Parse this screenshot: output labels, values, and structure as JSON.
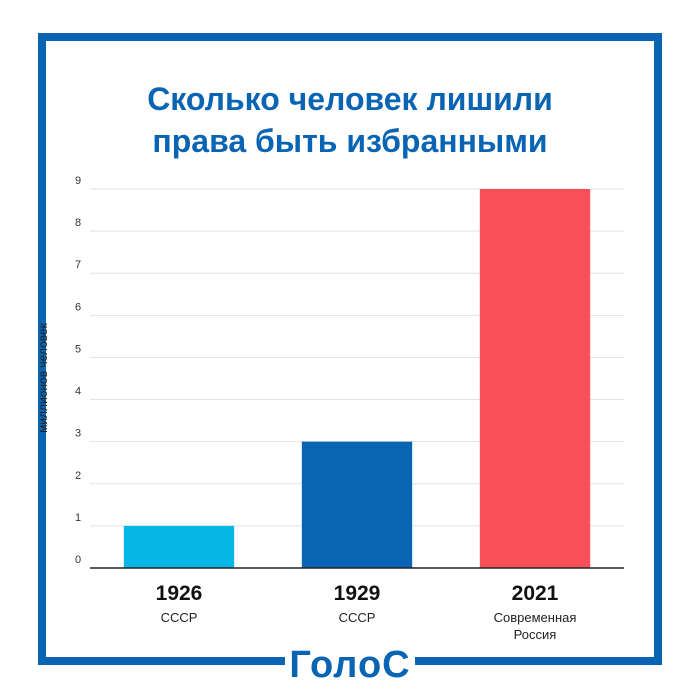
{
  "title_lines": [
    "Сколько человек лишили",
    "права быть избранными"
  ],
  "logo_text": "ГолоС",
  "colors": {
    "frame": "#0a64b4",
    "title": "#0a64b4",
    "grid": "#e2e2e2",
    "axis": "#222222"
  },
  "chart_data": {
    "type": "bar",
    "title": "Сколько человек лишили права быть избранными",
    "ylabel": "миллионов человек",
    "xlabel": "",
    "ylim": [
      0,
      9
    ],
    "yticks": [
      0,
      1,
      2,
      3,
      4,
      5,
      6,
      7,
      8,
      9
    ],
    "grid": true,
    "categories": [
      {
        "year": "1926",
        "sub": [
          "СССР"
        ]
      },
      {
        "year": "1929",
        "sub": [
          "СССР"
        ]
      },
      {
        "year": "2021",
        "sub": [
          "Современная",
          "Россия"
        ]
      }
    ],
    "values": [
      1,
      3,
      9
    ],
    "bar_colors": [
      "#06b6e5",
      "#0a64b4",
      "#fb5058"
    ]
  }
}
